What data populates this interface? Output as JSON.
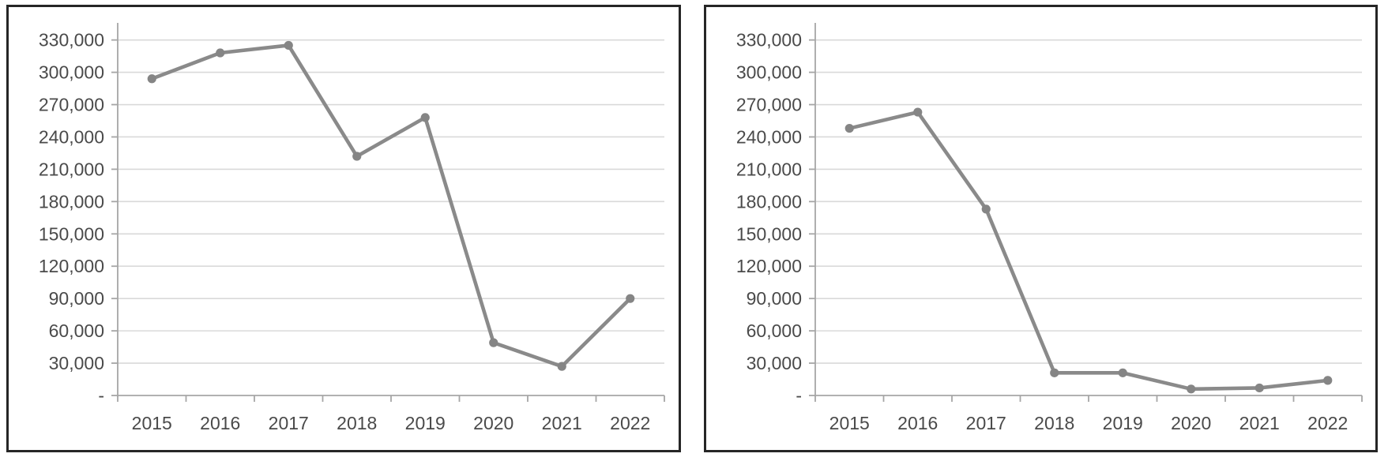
{
  "chart_data": [
    {
      "type": "line",
      "name": "left-line-chart",
      "title": "",
      "xlabel": "",
      "ylabel": "",
      "categories": [
        "2015",
        "2016",
        "2017",
        "2018",
        "2019",
        "2020",
        "2021",
        "2022"
      ],
      "values": [
        294000,
        318000,
        325000,
        222000,
        258000,
        49000,
        27000,
        90000
      ],
      "y_tick_labels": [
        "330,000",
        "300,000",
        "270,000",
        "240,000",
        "210,000",
        "180,000",
        "150,000",
        "120,000",
        "90,000",
        "60,000",
        "30,000",
        "-"
      ],
      "y_tick_values": [
        330000,
        300000,
        270000,
        240000,
        210000,
        180000,
        150000,
        120000,
        90000,
        60000,
        30000,
        0
      ],
      "ylim": [
        0,
        340000
      ],
      "grid": true,
      "legend_position": "none"
    },
    {
      "type": "line",
      "name": "right-line-chart",
      "title": "",
      "xlabel": "",
      "ylabel": "",
      "categories": [
        "2015",
        "2016",
        "2017",
        "2018",
        "2019",
        "2020",
        "2021",
        "2022"
      ],
      "values": [
        248000,
        263000,
        173000,
        21000,
        21000,
        6000,
        7000,
        14000
      ],
      "y_tick_labels": [
        "330,000",
        "300,000",
        "270,000",
        "240,000",
        "210,000",
        "180,000",
        "150,000",
        "120,000",
        "90,000",
        "60,000",
        "30,000",
        "-"
      ],
      "y_tick_values": [
        330000,
        300000,
        270000,
        240000,
        210000,
        180000,
        150000,
        120000,
        90000,
        60000,
        30000,
        0
      ],
      "ylim": [
        0,
        340000
      ],
      "grid": true,
      "legend_position": "none"
    }
  ],
  "colors": {
    "line": "#8a8a8a",
    "marker": "#858585",
    "gridline": "#d9d9d9",
    "axis": "#a6a6a6",
    "tick_label": "#4a4a4a",
    "box_border": "#262626",
    "background": "#ffffff"
  }
}
